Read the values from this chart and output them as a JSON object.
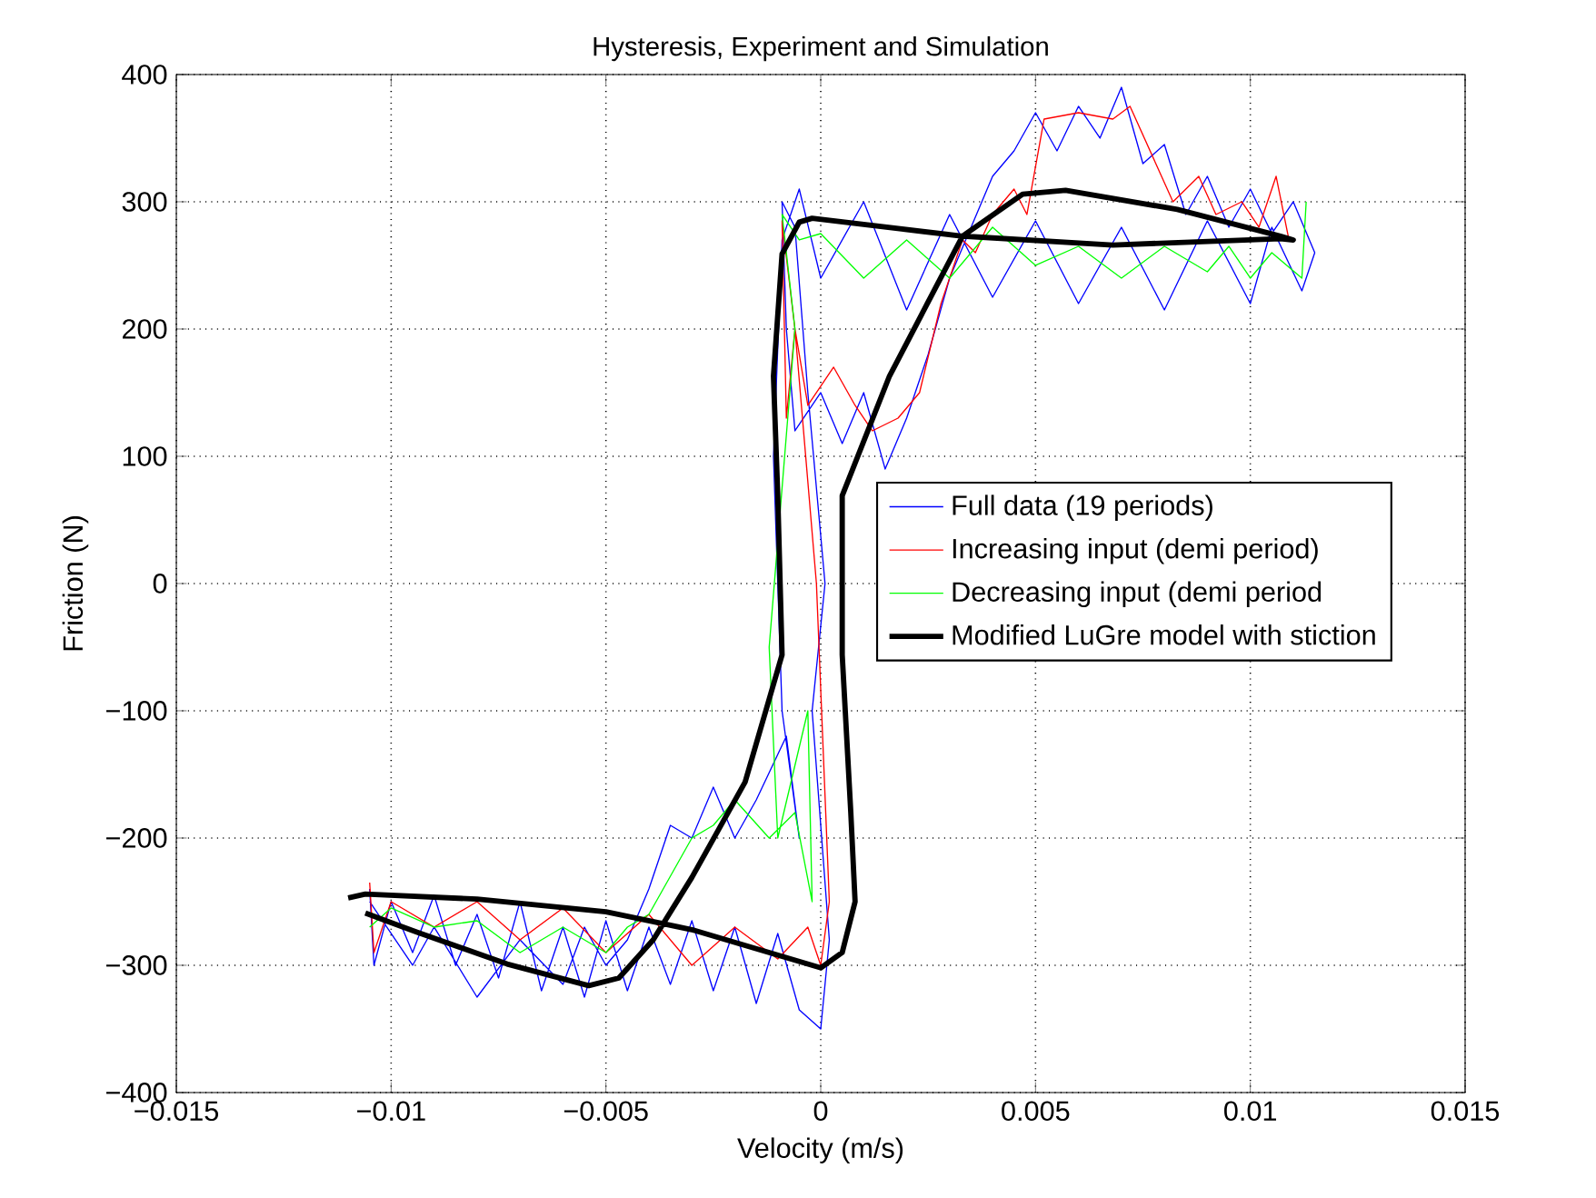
{
  "chart_data": {
    "type": "line",
    "title": "Hysteresis, Experiment and Simulation",
    "xlabel": "Velocity (m/s)",
    "ylabel": "Friction (N)",
    "xlim": [
      -0.015,
      0.015
    ],
    "ylim": [
      -400,
      400
    ],
    "xticks": [
      {
        "value": -0.015,
        "label": "−0.015"
      },
      {
        "value": -0.01,
        "label": "−0.01"
      },
      {
        "value": -0.005,
        "label": "−0.005"
      },
      0,
      0.005,
      0.01,
      0.015
    ],
    "yticks": [
      {
        "value": -400,
        "label": "−400"
      },
      {
        "value": -300,
        "label": "−300"
      },
      {
        "value": -200,
        "label": "−200"
      },
      {
        "value": -100,
        "label": "−100"
      },
      0,
      100,
      200,
      300,
      400
    ],
    "grid": true,
    "legend": "right",
    "series": [
      {
        "name": "Full data (19 periods)",
        "color": "#0000ff",
        "x": [
          -0.0105,
          -0.0104,
          -0.01,
          -0.0095,
          -0.009,
          -0.0085,
          -0.008,
          -0.0075,
          -0.007,
          -0.0065,
          -0.006,
          -0.0055,
          -0.005,
          -0.0045,
          -0.004,
          -0.0035,
          -0.003,
          -0.0025,
          -0.002,
          -0.0015,
          -0.001,
          -0.0005,
          0,
          0.0002,
          -0.0002,
          0.0001,
          -0.0003,
          -0.0006,
          -0.0009,
          -0.0008,
          -0.0006,
          0,
          0.0005,
          0.001,
          0.0015,
          0.002,
          0.0025,
          0.003,
          0.0035,
          0.004,
          0.0045,
          0.005,
          0.0055,
          0.006,
          0.0065,
          0.007,
          0.0075,
          0.008,
          0.0085,
          0.009,
          0.0095,
          0.01,
          0.0105,
          0.011,
          0.0115,
          0.0112,
          0.0105,
          0.01,
          0.009,
          0.008,
          0.007,
          0.006,
          0.005,
          0.004,
          0.003,
          0.002,
          0.001,
          0,
          -0.0005,
          -0.0009,
          -0.0011,
          -0.0009,
          -0.0005,
          -0.0008,
          -0.0015,
          -0.002,
          -0.0025,
          -0.003,
          -0.0035,
          -0.004,
          -0.0045,
          -0.005,
          -0.0055,
          -0.006,
          -0.007,
          -0.008,
          -0.009,
          -0.0095,
          -0.0105
        ],
        "values": [
          -240,
          -300,
          -250,
          -290,
          -245,
          -300,
          -260,
          -310,
          -250,
          -320,
          -270,
          -325,
          -265,
          -320,
          -270,
          -315,
          -265,
          -320,
          -270,
          -330,
          -275,
          -335,
          -350,
          -280,
          -100,
          0,
          150,
          280,
          300,
          200,
          120,
          150,
          110,
          150,
          90,
          130,
          180,
          240,
          280,
          320,
          340,
          370,
          340,
          375,
          350,
          390,
          330,
          345,
          290,
          320,
          280,
          310,
          275,
          300,
          260,
          230,
          280,
          220,
          285,
          215,
          280,
          220,
          285,
          225,
          290,
          215,
          300,
          240,
          310,
          270,
          100,
          -100,
          -200,
          -120,
          -170,
          -200,
          -160,
          -200,
          -190,
          -240,
          -280,
          -300,
          -270,
          -315,
          -280,
          -325,
          -270,
          -300,
          -250
        ]
      },
      {
        "name": "Increasing input (demi period)",
        "color": "#ff0000",
        "x": [
          -0.0105,
          -0.0104,
          -0.01,
          -0.009,
          -0.008,
          -0.007,
          -0.006,
          -0.005,
          -0.004,
          -0.003,
          -0.002,
          -0.001,
          -0.0003,
          0,
          0.0002,
          -0.0001,
          -0.0006,
          -0.0009,
          -0.0008,
          -0.0006,
          -0.0003,
          0.0003,
          0.0008,
          0.0012,
          0.0018,
          0.0023,
          0.0028,
          0.0033,
          0.0036,
          0.004,
          0.0045,
          0.0048,
          0.0052,
          0.006,
          0.0068,
          0.0072,
          0.0078,
          0.0082,
          0.0088,
          0.0092,
          0.0098,
          0.0102,
          0.0106,
          0.0109
        ],
        "values": [
          -235,
          -290,
          -250,
          -270,
          -250,
          -280,
          -255,
          -290,
          -260,
          -300,
          -270,
          -295,
          -270,
          -300,
          -250,
          0,
          200,
          285,
          130,
          200,
          140,
          170,
          140,
          120,
          130,
          150,
          220,
          270,
          260,
          290,
          310,
          290,
          365,
          370,
          365,
          375,
          330,
          300,
          320,
          290,
          300,
          280,
          320,
          270
        ]
      },
      {
        "name": "Decreasing input (demi period",
        "color": "#00ff00",
        "x": [
          0.0113,
          0.0112,
          0.0105,
          0.01,
          0.0095,
          0.009,
          0.008,
          0.007,
          0.006,
          0.005,
          0.004,
          0.003,
          0.002,
          0.001,
          0,
          -0.0005,
          -0.0009,
          -0.0006,
          -0.0012,
          -0.001,
          -0.0003,
          -0.0002,
          -0.0006,
          -0.0012,
          -0.002,
          -0.0025,
          -0.003,
          -0.0035,
          -0.004,
          -0.0045,
          -0.005,
          -0.006,
          -0.007,
          -0.008,
          -0.009,
          -0.01,
          -0.0105
        ],
        "values": [
          300,
          240,
          260,
          240,
          265,
          245,
          265,
          240,
          265,
          250,
          280,
          240,
          270,
          240,
          275,
          270,
          290,
          200,
          -50,
          -200,
          -100,
          -250,
          -180,
          -200,
          -170,
          -190,
          -200,
          -230,
          -260,
          -270,
          -290,
          -270,
          -290,
          -265,
          -270,
          -255,
          -270
        ]
      },
      {
        "name": "Modified LuGre model with stiction",
        "color": "#000000",
        "x": [
          -0.011,
          -0.0106,
          -0.008,
          -0.005,
          -0.003,
          -0.001,
          0,
          0.0005,
          0.0008,
          0.0007,
          0.0005,
          0.0005,
          0.0016,
          0.0033,
          0.0047,
          0.0057,
          0.0083,
          0.0107,
          0.011,
          0.0107,
          0.0068,
          0.0033,
          -0.0002,
          -0.0005,
          -0.0009,
          -0.0011,
          -0.001,
          -0.0009,
          -0.00176,
          -0.003,
          -0.0039,
          -0.0047,
          -0.0054,
          -0.0073,
          -0.0094,
          -0.0106
        ],
        "values": [
          -247,
          -244,
          -248,
          -258,
          -272,
          -292,
          -302,
          -290,
          -250,
          -180,
          -56,
          69,
          163,
          273,
          306,
          309,
          294,
          273,
          270,
          271,
          266,
          273,
          287,
          284,
          259,
          163,
          69,
          -56,
          -156,
          -231,
          -280,
          -310,
          -316,
          -299,
          -274,
          -259
        ]
      }
    ]
  }
}
